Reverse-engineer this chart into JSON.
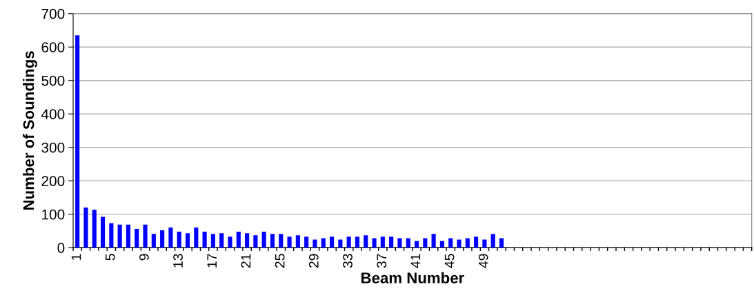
{
  "chart_data": {
    "type": "bar",
    "xlabel": "Beam Number",
    "ylabel": "Number of Soundings",
    "categories": [
      "1",
      null,
      null,
      null,
      "5",
      null,
      null,
      null,
      "9",
      null,
      null,
      null,
      "13",
      null,
      null,
      null,
      "17",
      null,
      null,
      null,
      "21",
      null,
      null,
      null,
      "25",
      null,
      null,
      null,
      "29",
      null,
      null,
      null,
      "33",
      null,
      null,
      null,
      "37",
      null,
      null,
      null,
      "41",
      null,
      null,
      null,
      "45",
      null,
      null,
      null,
      "49",
      null,
      null,
      null,
      null,
      null,
      null,
      null,
      null,
      null,
      null,
      null,
      null,
      null,
      null,
      null,
      null,
      null,
      null,
      null,
      null,
      null,
      null,
      null,
      null,
      null,
      null,
      null,
      null,
      null,
      null,
      null
    ],
    "values": [
      635,
      120,
      113,
      92,
      73,
      69,
      69,
      56,
      69,
      41,
      52,
      60,
      48,
      43,
      60,
      48,
      41,
      43,
      33,
      48,
      43,
      37,
      48,
      41,
      41,
      33,
      37,
      33,
      24,
      28,
      33,
      24,
      33,
      33,
      37,
      28,
      33,
      33,
      28,
      28,
      20,
      28,
      41,
      20,
      28,
      24,
      28,
      33,
      24,
      41,
      28,
      null,
      null,
      null,
      null,
      null,
      null,
      null,
      null,
      null,
      null,
      null,
      null,
      null,
      null,
      null,
      null,
      null,
      null,
      null,
      null,
      null,
      null,
      null,
      null,
      null,
      null,
      null,
      null,
      null
    ],
    "color": "#0000ff",
    "ylim": [
      0,
      700
    ],
    "yticks": [
      0,
      100,
      200,
      300,
      400,
      500,
      600,
      700
    ],
    "grid": "y"
  }
}
